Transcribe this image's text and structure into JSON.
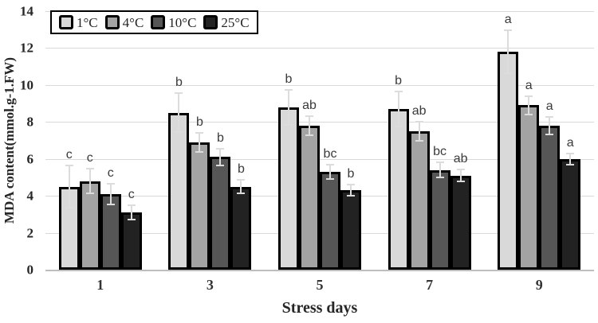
{
  "chart_data": {
    "type": "bar",
    "title": "",
    "xlabel": "Stress days",
    "ylabel": "MDA content(mmol.g-1.FW)",
    "categories": [
      "1",
      "3",
      "5",
      "7",
      "9"
    ],
    "series": [
      {
        "name": "1°C",
        "color": "#d9d9d9",
        "values": [
          4.5,
          8.5,
          8.8,
          8.7,
          11.8
        ],
        "errors": [
          1.2,
          1.1,
          1.0,
          1.0,
          1.2
        ],
        "letters": [
          "c",
          "b",
          "b",
          "b",
          "a"
        ]
      },
      {
        "name": "4°C",
        "color": "#a3a3a3",
        "values": [
          4.8,
          6.9,
          7.8,
          7.5,
          8.9
        ],
        "errors": [
          0.7,
          0.55,
          0.55,
          0.55,
          0.55
        ],
        "letters": [
          "c",
          "b",
          "ab",
          "ab",
          "a"
        ]
      },
      {
        "name": "10°C",
        "color": "#565656",
        "values": [
          4.1,
          6.1,
          5.3,
          5.4,
          7.8
        ],
        "errors": [
          0.6,
          0.5,
          0.45,
          0.45,
          0.5
        ],
        "letters": [
          "c",
          "b",
          "bc",
          "bc",
          "a"
        ]
      },
      {
        "name": "25°C",
        "color": "#222222",
        "values": [
          3.1,
          4.5,
          4.3,
          5.1,
          6.0
        ],
        "errors": [
          0.45,
          0.4,
          0.35,
          0.35,
          0.35
        ],
        "letters": [
          "c",
          "b",
          "b",
          "ab",
          "a"
        ]
      }
    ],
    "ylim": [
      0,
      14
    ],
    "y_ticks": [
      0,
      2,
      4,
      6,
      8,
      10,
      12,
      14
    ],
    "grid": true,
    "legend_position": "top-left",
    "bar_border_color": "#000000",
    "error_bar_color": "#dcdcdc",
    "gridline_color": "#d9d9d9"
  }
}
